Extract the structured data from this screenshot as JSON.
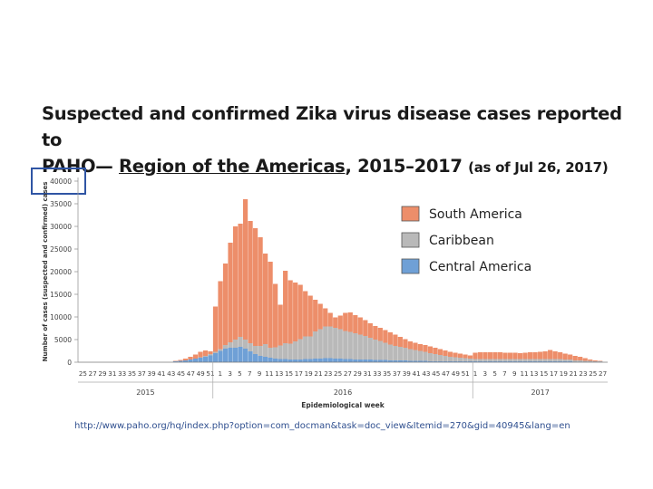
{
  "slide": {
    "title_line1": "Suspected and confirmed Zika virus disease cases reported to",
    "title_prefix": "PAHO— ",
    "title_region": "Region of the Americas",
    "title_years": ", 2015–2017 ",
    "title_asof": "(as of Jul 26, 2017)",
    "source_url": "http://www.paho.org/hq/index.php?option=com_docman&task=doc_view&Itemid=270&gid=40945&lang=en"
  },
  "colors": {
    "south_america": "#ED8E6A",
    "caribbean": "#B9B9B9",
    "central_america": "#6FA0D6",
    "highlight_box": "#2F55A4"
  },
  "chart_data": {
    "type": "bar",
    "stacked": true,
    "title": "Suspected and confirmed Zika virus disease cases reported to PAHO— Region of the Americas, 2015–2017 (as of Jul 26, 2017)",
    "xlabel": "Epidemiological week",
    "ylabel": "Number of cases (suspected and confirmed) cases",
    "ylim": [
      0,
      40000
    ],
    "yticks": [
      0,
      5000,
      10000,
      15000,
      20000,
      25000,
      30000,
      35000,
      40000
    ],
    "legend": [
      "South America",
      "Caribbean",
      "Central America"
    ],
    "legend_position": "right",
    "year_groups": [
      {
        "label": "2015",
        "start": 0,
        "end": 27
      },
      {
        "label": "2016",
        "start": 27,
        "end": 79
      },
      {
        "label": "2017",
        "start": 79,
        "end": 106
      }
    ],
    "week_labels": [
      "25",
      "27",
      "29",
      "31",
      "33",
      "35",
      "37",
      "39",
      "41",
      "43",
      "45",
      "47",
      "49",
      "51",
      "1",
      "3",
      "5",
      "7",
      "9",
      "11",
      "13",
      "15",
      "17",
      "19",
      "21",
      "23",
      "25",
      "27",
      "29",
      "31",
      "33",
      "35",
      "37",
      "39",
      "41",
      "43",
      "45",
      "47",
      "49",
      "51",
      "1",
      "3",
      "5",
      "7",
      "9",
      "11",
      "13",
      "15",
      "17",
      "19",
      "21",
      "23",
      "25",
      "27"
    ],
    "weeks": [
      "25",
      "26",
      "27",
      "28",
      "29",
      "30",
      "31",
      "32",
      "33",
      "34",
      "35",
      "36",
      "37",
      "38",
      "39",
      "40",
      "41",
      "42",
      "43",
      "44",
      "45",
      "46",
      "47",
      "48",
      "49",
      "50",
      "51",
      "1",
      "2",
      "3",
      "4",
      "5",
      "6",
      "7",
      "8",
      "9",
      "10",
      "11",
      "12",
      "13",
      "14",
      "15",
      "16",
      "17",
      "18",
      "19",
      "20",
      "21",
      "22",
      "23",
      "24",
      "25",
      "26",
      "27",
      "28",
      "29",
      "30",
      "31",
      "32",
      "33",
      "34",
      "35",
      "36",
      "37",
      "38",
      "39",
      "40",
      "41",
      "42",
      "43",
      "44",
      "45",
      "46",
      "47",
      "48",
      "49",
      "50",
      "51",
      "52",
      "1",
      "2",
      "3",
      "4",
      "5",
      "6",
      "7",
      "8",
      "9",
      "10",
      "11",
      "12",
      "13",
      "14",
      "15",
      "16",
      "17",
      "18",
      "19",
      "20",
      "21",
      "22",
      "23",
      "24",
      "25",
      "26",
      "27"
    ],
    "series": [
      {
        "name": "Central America",
        "values": [
          0,
          0,
          0,
          0,
          0,
          0,
          0,
          0,
          0,
          0,
          0,
          0,
          0,
          0,
          0,
          0,
          0,
          0,
          0,
          200,
          300,
          400,
          600,
          800,
          1000,
          1200,
          1500,
          2000,
          2500,
          3000,
          3200,
          3200,
          3400,
          3000,
          2400,
          1800,
          1400,
          1200,
          1000,
          800,
          700,
          700,
          600,
          600,
          600,
          700,
          700,
          800,
          800,
          900,
          900,
          800,
          800,
          700,
          700,
          600,
          600,
          600,
          600,
          500,
          500,
          500,
          400,
          400,
          400,
          400,
          300,
          300,
          300,
          300,
          200,
          200,
          200,
          200,
          200,
          200,
          200,
          200,
          200,
          200,
          200,
          200,
          200,
          200,
          200,
          200,
          200,
          200,
          200,
          200,
          200,
          200,
          200,
          200,
          200,
          200,
          200,
          200,
          200,
          100,
          100,
          100,
          100,
          100,
          100,
          0
        ]
      },
      {
        "name": "Caribbean",
        "values": [
          0,
          0,
          0,
          0,
          0,
          0,
          0,
          0,
          0,
          0,
          0,
          0,
          0,
          0,
          0,
          0,
          0,
          0,
          0,
          0,
          0,
          0,
          0,
          0,
          100,
          200,
          300,
          300,
          400,
          800,
          1200,
          1800,
          2200,
          2000,
          1800,
          1800,
          2200,
          2800,
          2200,
          2500,
          3000,
          3500,
          3500,
          4000,
          4500,
          5000,
          5000,
          6000,
          6500,
          7000,
          7000,
          6800,
          6500,
          6200,
          6000,
          5800,
          5500,
          5200,
          4800,
          4500,
          4200,
          3800,
          3500,
          3200,
          3000,
          2800,
          2600,
          2400,
          2200,
          2000,
          1800,
          1600,
          1400,
          1200,
          1000,
          900,
          800,
          700,
          600,
          500,
          500,
          500,
          500,
          500,
          500,
          500,
          500,
          500,
          500,
          500,
          500,
          500,
          500,
          500,
          500,
          500,
          500,
          400,
          400,
          300,
          300,
          200,
          200,
          100,
          100,
          0
        ]
      },
      {
        "name": "South America",
        "values": [
          0,
          0,
          0,
          0,
          0,
          0,
          0,
          0,
          0,
          0,
          0,
          0,
          0,
          0,
          0,
          0,
          0,
          0,
          0,
          100,
          200,
          400,
          600,
          900,
          1200,
          1200,
          600,
          10000,
          15000,
          18000,
          22000,
          25000,
          25000,
          31000,
          27000,
          26000,
          24000,
          20000,
          19000,
          14000,
          9000,
          16000,
          14000,
          13000,
          12000,
          10000,
          9000,
          7000,
          5600,
          4000,
          3000,
          2300,
          3000,
          4000,
          4300,
          4000,
          3800,
          3500,
          3200,
          3000,
          2900,
          2800,
          2700,
          2500,
          2200,
          1900,
          1700,
          1600,
          1500,
          1500,
          1500,
          1400,
          1300,
          1200,
          1100,
          1000,
          900,
          800,
          700,
          1400,
          1500,
          1500,
          1500,
          1500,
          1500,
          1400,
          1400,
          1400,
          1300,
          1400,
          1500,
          1500,
          1600,
          1700,
          2000,
          1700,
          1500,
          1300,
          1100,
          1000,
          800,
          600,
          300,
          200,
          100,
          0
        ]
      }
    ]
  }
}
